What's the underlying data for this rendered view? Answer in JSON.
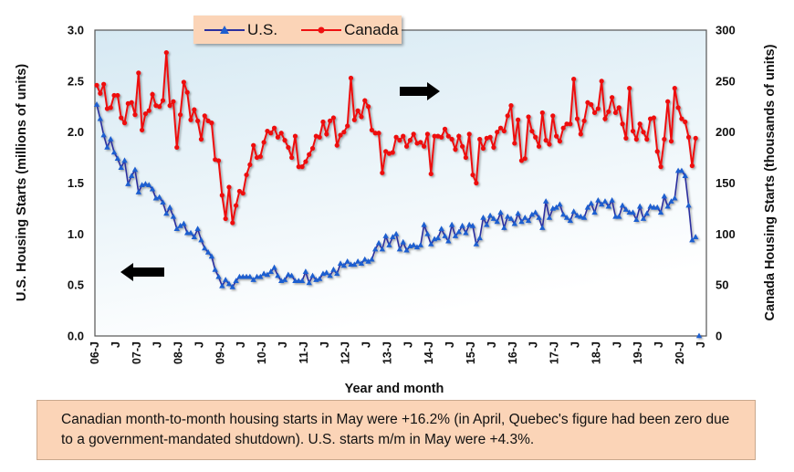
{
  "chart_data": {
    "type": "line",
    "title": "",
    "xlabel": "Year and month",
    "ylabel_left": "U.S. Housing Starts (millions of units)",
    "ylabel_right": "Canada Housing Starts (thousands of units)",
    "ylim_left": [
      0,
      3.0
    ],
    "ylim_right": [
      0,
      300
    ],
    "yticks_left": [
      "0.0",
      "0.5",
      "1.0",
      "1.5",
      "2.0",
      "2.5",
      "3.0"
    ],
    "yticks_right": [
      "0",
      "50",
      "100",
      "150",
      "200",
      "250",
      "300"
    ],
    "x_start": "2006-01",
    "x_end": "2020-05",
    "xtick_labels": [
      "06-J",
      "J",
      "07-J",
      "J",
      "08-J",
      "J",
      "09-J",
      "J",
      "10-J",
      "J",
      "11-J",
      "J",
      "12-J",
      "J",
      "13-J",
      "J",
      "14-J",
      "J",
      "15-J",
      "J",
      "16-J",
      "J",
      "17-J",
      "J",
      "18-J",
      "J",
      "19-J",
      "J",
      "20-J",
      "J"
    ],
    "legend": {
      "placement": "top-center",
      "entries": [
        "U.S.",
        "Canada"
      ]
    },
    "series": [
      {
        "name": "U.S.",
        "axis": "left",
        "color": "#1f5fd0",
        "line_color": "#2b2f9e",
        "marker": "triangle",
        "values": [
          2.27,
          2.13,
          1.97,
          1.85,
          1.93,
          1.8,
          1.74,
          1.65,
          1.72,
          1.49,
          1.57,
          1.63,
          1.41,
          1.48,
          1.49,
          1.48,
          1.44,
          1.35,
          1.36,
          1.31,
          1.2,
          1.26,
          1.17,
          1.05,
          1.08,
          1.1,
          1.01,
          1.01,
          0.97,
          1.05,
          0.94,
          0.86,
          0.82,
          0.78,
          0.65,
          0.58,
          0.49,
          0.55,
          0.51,
          0.48,
          0.54,
          0.58,
          0.58,
          0.58,
          0.58,
          0.55,
          0.58,
          0.58,
          0.61,
          0.6,
          0.63,
          0.67,
          0.59,
          0.54,
          0.55,
          0.6,
          0.59,
          0.54,
          0.54,
          0.54,
          0.63,
          0.52,
          0.59,
          0.55,
          0.56,
          0.61,
          0.62,
          0.59,
          0.65,
          0.61,
          0.71,
          0.69,
          0.73,
          0.7,
          0.7,
          0.73,
          0.71,
          0.75,
          0.73,
          0.75,
          0.85,
          0.91,
          0.85,
          0.98,
          0.89,
          0.97,
          1.0,
          0.85,
          0.92,
          0.84,
          0.88,
          0.89,
          0.87,
          0.89,
          1.09,
          1.0,
          0.9,
          0.95,
          0.96,
          1.05,
          0.98,
          0.93,
          1.09,
          0.98,
          1.02,
          1.08,
          1.01,
          1.09,
          1.08,
          0.9,
          0.96,
          1.16,
          1.09,
          1.18,
          1.15,
          1.12,
          1.21,
          1.06,
          1.17,
          1.15,
          1.1,
          1.2,
          1.12,
          1.16,
          1.13,
          1.19,
          1.21,
          1.16,
          1.06,
          1.32,
          1.16,
          1.25,
          1.26,
          1.29,
          1.19,
          1.16,
          1.13,
          1.22,
          1.18,
          1.17,
          1.16,
          1.26,
          1.3,
          1.21,
          1.33,
          1.29,
          1.32,
          1.27,
          1.33,
          1.17,
          1.17,
          1.28,
          1.24,
          1.21,
          1.21,
          1.14,
          1.27,
          1.15,
          1.2,
          1.27,
          1.26,
          1.26,
          1.21,
          1.37,
          1.27,
          1.32,
          1.35,
          1.62,
          1.62,
          1.57,
          1.28,
          0.94,
          0.97
        ],
        "extra_point": {
          "month": "2020-06",
          "value": 0
        }
      },
      {
        "name": "Canada",
        "axis": "right",
        "color": "#ee1111",
        "marker": "circle",
        "values": [
          246,
          238,
          247,
          223,
          224,
          236,
          236,
          214,
          209,
          228,
          229,
          217,
          258,
          202,
          218,
          221,
          237,
          226,
          225,
          231,
          278,
          226,
          230,
          185,
          217,
          249,
          239,
          212,
          222,
          211,
          193,
          216,
          211,
          209,
          173,
          172,
          138,
          115,
          146,
          111,
          128,
          142,
          140,
          158,
          168,
          187,
          175,
          176,
          190,
          201,
          199,
          204,
          195,
          199,
          192,
          185,
          175,
          196,
          166,
          166,
          171,
          178,
          184,
          196,
          195,
          210,
          198,
          211,
          214,
          187,
          197,
          200,
          206,
          253,
          212,
          221,
          215,
          231,
          225,
          202,
          199,
          199,
          160,
          181,
          179,
          180,
          195,
          192,
          196,
          186,
          192,
          198,
          189,
          190,
          186,
          198,
          159,
          196,
          196,
          195,
          203,
          196,
          193,
          183,
          196,
          186,
          175,
          198,
          158,
          150,
          193,
          184,
          194,
          195,
          185,
          200,
          204,
          201,
          216,
          226,
          189,
          212,
          172,
          174,
          215,
          201,
          195,
          186,
          219,
          192,
          188,
          216,
          196,
          191,
          204,
          208,
          208,
          252,
          213,
          198,
          211,
          229,
          227,
          219,
          223,
          250,
          213,
          220,
          234,
          219,
          224,
          208,
          194,
          243,
          201,
          193,
          208,
          200,
          193,
          213,
          214,
          181,
          166,
          193,
          230,
          191,
          243,
          224,
          213,
          210,
          195,
          167,
          194
        ]
      }
    ],
    "annotations": [
      "left-arrow points to U.S. series (left axis)",
      "right-arrow points to Canada series (right axis)"
    ]
  },
  "note": "Canadian month-to-month housing starts in May were +16.2% (in April, Quebec's figure had been zero due to a government-mandated shutdown). U.S. starts m/m in May were +4.3%."
}
